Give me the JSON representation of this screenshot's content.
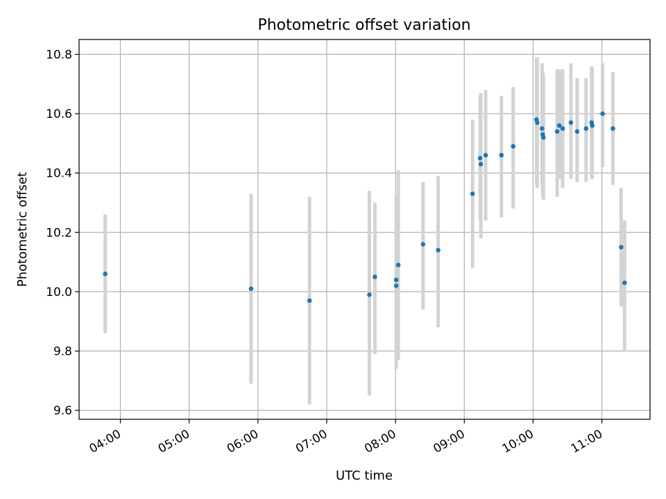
{
  "chart_data": {
    "type": "scatter",
    "title": "Photometric offset variation",
    "xlabel": "UTC time",
    "ylabel": "Photometric offset",
    "x_unit": "hours UTC",
    "xlim": [
      3.4,
      11.7
    ],
    "ylim": [
      9.57,
      10.85
    ],
    "xticks": [
      {
        "value": 4,
        "label": "04:00"
      },
      {
        "value": 5,
        "label": "05:00"
      },
      {
        "value": 6,
        "label": "06:00"
      },
      {
        "value": 7,
        "label": "07:00"
      },
      {
        "value": 8,
        "label": "08:00"
      },
      {
        "value": 9,
        "label": "09:00"
      },
      {
        "value": 10,
        "label": "10:00"
      },
      {
        "value": 11,
        "label": "11:00"
      }
    ],
    "yticks": [
      {
        "value": 9.6,
        "label": "9.6"
      },
      {
        "value": 9.8,
        "label": "9.8"
      },
      {
        "value": 10.0,
        "label": "10.0"
      },
      {
        "value": 10.2,
        "label": "10.2"
      },
      {
        "value": 10.4,
        "label": "10.4"
      },
      {
        "value": 10.6,
        "label": "10.6"
      },
      {
        "value": 10.8,
        "label": "10.8"
      }
    ],
    "grid": true,
    "colors": {
      "point": "#1f77b4",
      "errorbar": "#d3d3d3",
      "grid": "#b0b0b0",
      "axes": "#000000"
    },
    "points": [
      {
        "x": 3.78,
        "y": 10.06,
        "low": 9.86,
        "high": 10.26
      },
      {
        "x": 5.9,
        "y": 10.01,
        "low": 9.69,
        "high": 10.33
      },
      {
        "x": 6.75,
        "y": 9.97,
        "low": 9.62,
        "high": 10.32
      },
      {
        "x": 7.62,
        "y": 9.99,
        "low": 9.65,
        "high": 10.34
      },
      {
        "x": 7.7,
        "y": 10.05,
        "low": 9.79,
        "high": 10.3
      },
      {
        "x": 8.01,
        "y": 10.04,
        "low": 9.75,
        "high": 10.32
      },
      {
        "x": 8.01,
        "y": 10.02,
        "low": 9.74,
        "high": 10.31
      },
      {
        "x": 8.04,
        "y": 10.09,
        "low": 9.77,
        "high": 10.41
      },
      {
        "x": 8.4,
        "y": 10.16,
        "low": 9.94,
        "high": 10.37
      },
      {
        "x": 8.62,
        "y": 10.14,
        "low": 9.88,
        "high": 10.39
      },
      {
        "x": 9.12,
        "y": 10.33,
        "low": 10.08,
        "high": 10.58
      },
      {
        "x": 9.23,
        "y": 10.45,
        "low": 10.24,
        "high": 10.66
      },
      {
        "x": 9.24,
        "y": 10.43,
        "low": 10.18,
        "high": 10.67
      },
      {
        "x": 9.31,
        "y": 10.46,
        "low": 10.24,
        "high": 10.68
      },
      {
        "x": 9.54,
        "y": 10.46,
        "low": 10.25,
        "high": 10.66
      },
      {
        "x": 9.71,
        "y": 10.49,
        "low": 10.28,
        "high": 10.69
      },
      {
        "x": 10.05,
        "y": 10.58,
        "low": 10.36,
        "high": 10.79
      },
      {
        "x": 10.06,
        "y": 10.57,
        "low": 10.35,
        "high": 10.79
      },
      {
        "x": 10.13,
        "y": 10.55,
        "low": 10.36,
        "high": 10.77
      },
      {
        "x": 10.14,
        "y": 10.53,
        "low": 10.32,
        "high": 10.74
      },
      {
        "x": 10.15,
        "y": 10.52,
        "low": 10.31,
        "high": 10.73
      },
      {
        "x": 10.35,
        "y": 10.54,
        "low": 10.32,
        "high": 10.75
      },
      {
        "x": 10.38,
        "y": 10.56,
        "low": 10.38,
        "high": 10.75
      },
      {
        "x": 10.43,
        "y": 10.55,
        "low": 10.35,
        "high": 10.75
      },
      {
        "x": 10.55,
        "y": 10.57,
        "low": 10.38,
        "high": 10.77
      },
      {
        "x": 10.64,
        "y": 10.54,
        "low": 10.37,
        "high": 10.72
      },
      {
        "x": 10.77,
        "y": 10.55,
        "low": 10.37,
        "high": 10.72
      },
      {
        "x": 10.85,
        "y": 10.57,
        "low": 10.38,
        "high": 10.76
      },
      {
        "x": 10.86,
        "y": 10.56,
        "low": 10.38,
        "high": 10.75
      },
      {
        "x": 11.01,
        "y": 10.6,
        "low": 10.42,
        "high": 10.77
      },
      {
        "x": 11.16,
        "y": 10.55,
        "low": 10.36,
        "high": 10.74
      },
      {
        "x": 11.28,
        "y": 10.15,
        "low": 9.95,
        "high": 10.35
      },
      {
        "x": 11.33,
        "y": 10.03,
        "low": 9.8,
        "high": 10.24
      }
    ]
  }
}
